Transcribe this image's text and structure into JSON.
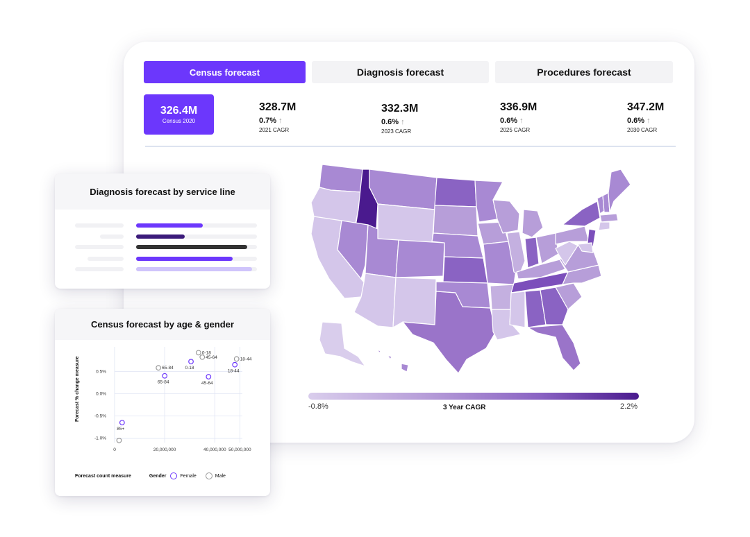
{
  "tabs": [
    {
      "label": "Census forecast",
      "active": true
    },
    {
      "label": "Diagnosis forecast",
      "active": false
    },
    {
      "label": "Procedures forecast",
      "active": false
    }
  ],
  "census": {
    "value": "326.4M",
    "label": "Census 2020"
  },
  "stats": [
    {
      "value": "328.7M",
      "pct": "0.7%",
      "label": "2021 CAGR"
    },
    {
      "value": "332.3M",
      "pct": "0.6%",
      "label": "2023 CAGR"
    },
    {
      "value": "336.9M",
      "pct": "0.6%",
      "label": "2025 CAGR"
    },
    {
      "value": "347.2M",
      "pct": "0.6%",
      "label": "2030 CAGR"
    }
  ],
  "map_legend": {
    "min": "-0.8%",
    "max": "2.2%",
    "title": "3 Year CAGR",
    "colors": {
      "light": "#d9cdec",
      "mid": "#a889d3",
      "dark": "#8a63c3",
      "darkest": "#4a1a8e"
    }
  },
  "diagnosis_card": {
    "title": "Diagnosis forecast by service line",
    "bars": [
      {
        "fraction": 0.55,
        "color": "#6c37fc"
      },
      {
        "fraction": 0.4,
        "color": "#3b1a7a"
      },
      {
        "fraction": 0.92,
        "color": "#333333"
      },
      {
        "fraction": 0.8,
        "color": "#6c37fc"
      },
      {
        "fraction": 0.96,
        "color": "#cfc4fb"
      }
    ]
  },
  "census_card": {
    "title": "Census forecast by age & gender",
    "legend_gender": "Gender",
    "legend_female": "Female",
    "legend_male": "Male",
    "x_title": "Forecast count measure",
    "y_title": "Forecast % change measure"
  },
  "chart_data": {
    "type": "scatter",
    "title": "Census forecast by age & gender",
    "xlabel": "Forecast count measure",
    "ylabel": "Forecast % change measure",
    "x_ticks": [
      0,
      20000000,
      40000000,
      50000000
    ],
    "x_tick_labels": [
      "0",
      "20,000,000",
      "40,000,000",
      "50,000,000"
    ],
    "y_ticks": [
      0.5,
      0.0,
      -0.5,
      -1.0
    ],
    "y_tick_labels": [
      "0.5%",
      "0.0%",
      "-0.5%",
      "-1.0%"
    ],
    "xlim": [
      0,
      51000000
    ],
    "ylim": [
      -1.1,
      1.05
    ],
    "series": [
      {
        "name": "Female",
        "color": "#6c37fc",
        "points": [
          {
            "label": "85+",
            "x": 3000000,
            "y": -0.65
          },
          {
            "label": "65-84",
            "x": 20000000,
            "y": 0.4
          },
          {
            "label": "0-18",
            "x": 30500000,
            "y": 0.72
          },
          {
            "label": "45-64",
            "x": 37500000,
            "y": 0.38
          },
          {
            "label": "18-44",
            "x": 48000000,
            "y": 0.65
          }
        ]
      },
      {
        "name": "Male",
        "color": "#9a9a9a",
        "points": [
          {
            "label": "",
            "x": 1800000,
            "y": -1.05
          },
          {
            "label": "65-84",
            "x": 17500000,
            "y": 0.58
          },
          {
            "label": "0-18",
            "x": 33500000,
            "y": 0.92
          },
          {
            "label": "45-64",
            "x": 35000000,
            "y": 0.82
          },
          {
            "label": "18-44",
            "x": 48700000,
            "y": 0.78
          }
        ]
      }
    ]
  }
}
